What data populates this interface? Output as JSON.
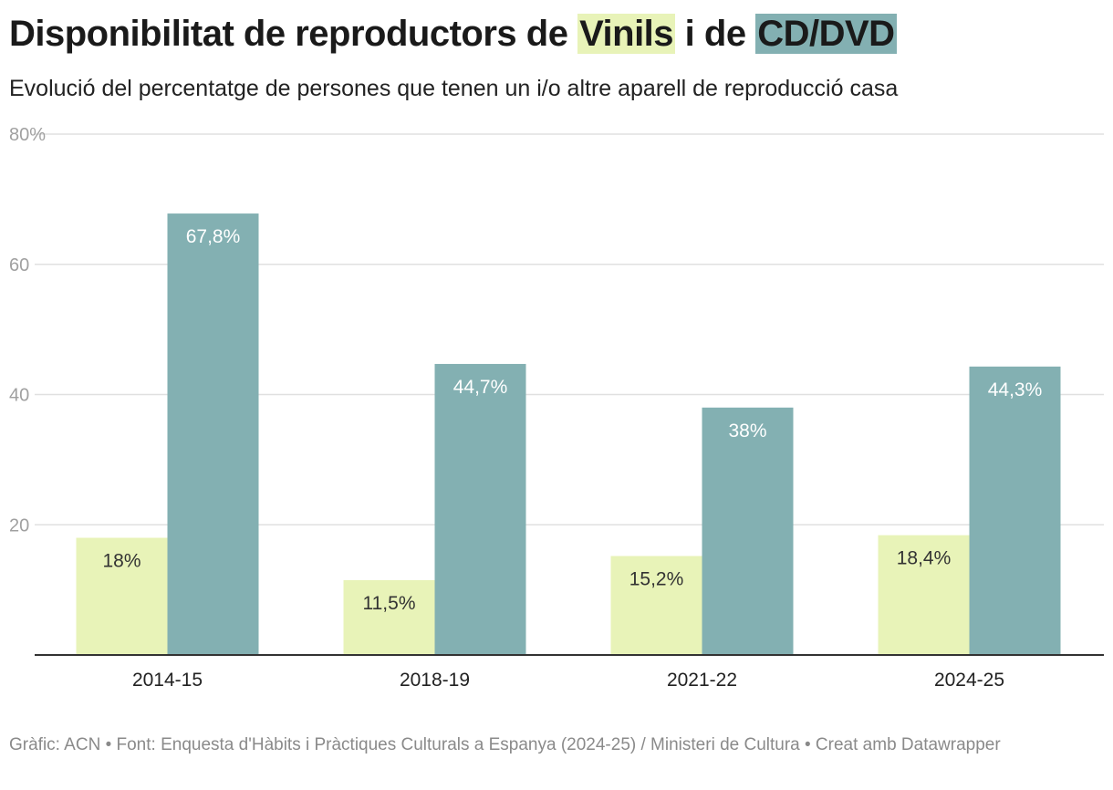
{
  "title": {
    "prefix": "Disponibilitat de reproductors de ",
    "series1": "Vinils",
    "middle": " i de ",
    "series2": "CD/DVD"
  },
  "subtitle": "Evolució del percentatge de persones que tenen un i/o altre aparell de reproducció casa",
  "footer": "Gràfic: ACN • Font: Enquesta d'Hàbits i Pràctiques Culturals a Espanya (2024-25) / Ministeri de Cultura • Creat amb Datawrapper",
  "colors": {
    "vinils": "#e8f3b8",
    "cddvd": "#83b0b2",
    "grid": "#e0e0e0",
    "axis": "#333333",
    "tick_label": "#a0a0a0"
  },
  "chart_data": {
    "type": "bar",
    "categories": [
      "2014-15",
      "2018-19",
      "2021-22",
      "2024-25"
    ],
    "series": [
      {
        "name": "Vinils",
        "values": [
          18,
          11.5,
          15.2,
          18.4
        ],
        "labels": [
          "18%",
          "11,5%",
          "15,2%",
          "18,4%"
        ]
      },
      {
        "name": "CD/DVD",
        "values": [
          67.8,
          44.7,
          38,
          44.3
        ],
        "labels": [
          "67,8%",
          "44,7%",
          "38%",
          "44,3%"
        ]
      }
    ],
    "ylim": [
      0,
      80
    ],
    "yticks": [
      20,
      40,
      60,
      80
    ],
    "ytick_labels": [
      "20",
      "40",
      "60",
      "80%"
    ],
    "grid": true,
    "legend": "in-title"
  }
}
